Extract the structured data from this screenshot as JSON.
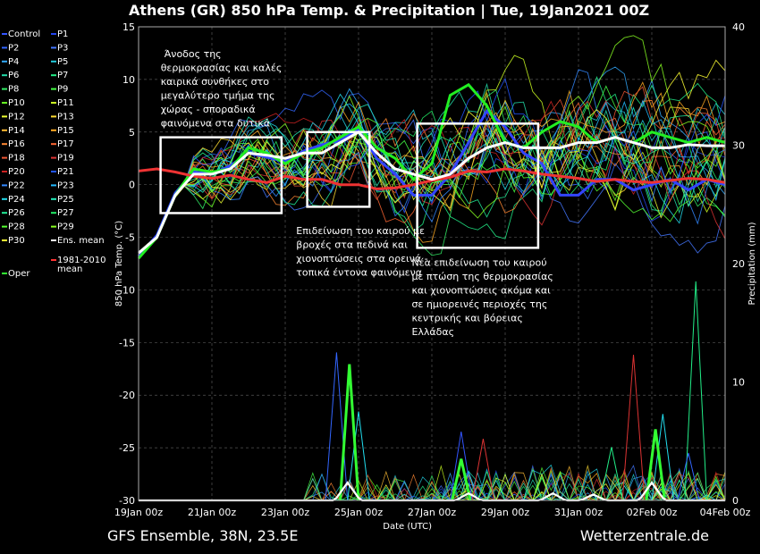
{
  "chart_data": {
    "type": "line",
    "title": "Athens  (GR)  850 hPa Temp. & Precipitation | Tue, 19Jan2021 00Z",
    "footer_left": "GFS Ensemble, 38N, 23.5E",
    "footer_right": "Wetterzentrale.de",
    "xlabel": "Date (UTC)",
    "ylabel": "850 hPa Temp. (°C)",
    "y2label": "Precipitation (mm)",
    "ylim": [
      -30,
      15
    ],
    "y2lim": [
      0,
      40
    ],
    "yticks": [
      "15",
      "10",
      "5",
      "0",
      "-5",
      "-10",
      "-15",
      "-20",
      "-25",
      "-30"
    ],
    "y2ticks": [
      "40",
      "30",
      "20",
      "10",
      "0"
    ],
    "xticks": [
      "19Jan 00z",
      "21Jan 00z",
      "23Jan 00z",
      "25Jan 00z",
      "27Jan 00z",
      "29Jan 00z",
      "31Jan 00z",
      "02Feb 00z",
      "04Feb 00z"
    ],
    "xrange_days": [
      0,
      16
    ],
    "grid": true,
    "legend": {
      "placement": "left",
      "items": [
        {
          "label": "Control",
          "color": "#3355ff"
        },
        {
          "label": "P1",
          "color": "#2244ee"
        },
        {
          "label": "P2",
          "color": "#3366ff"
        },
        {
          "label": "P3",
          "color": "#4477ff"
        },
        {
          "label": "P4",
          "color": "#33aaff"
        },
        {
          "label": "P5",
          "color": "#22ccdd"
        },
        {
          "label": "P6",
          "color": "#22ddaa"
        },
        {
          "label": "P7",
          "color": "#22ee88"
        },
        {
          "label": "P8",
          "color": "#33ee66"
        },
        {
          "label": "P9",
          "color": "#44ff44"
        },
        {
          "label": "P10",
          "color": "#66ff22"
        },
        {
          "label": "P11",
          "color": "#ccff22"
        },
        {
          "label": "P12",
          "color": "#eeff33"
        },
        {
          "label": "P13",
          "color": "#ffdd33"
        },
        {
          "label": "P14",
          "color": "#ffbb33"
        },
        {
          "label": "P15",
          "color": "#ffaa22"
        },
        {
          "label": "P16",
          "color": "#ff8833"
        },
        {
          "label": "P17",
          "color": "#ff6633"
        },
        {
          "label": "P18",
          "color": "#ee5533"
        },
        {
          "label": "P19",
          "color": "#dd3333"
        },
        {
          "label": "P20",
          "color": "#cc2222"
        },
        {
          "label": "P21",
          "color": "#2255ff"
        },
        {
          "label": "P22",
          "color": "#3388ff"
        },
        {
          "label": "P23",
          "color": "#22bbff"
        },
        {
          "label": "P24",
          "color": "#22ddee"
        },
        {
          "label": "P25",
          "color": "#22eebb"
        },
        {
          "label": "P26",
          "color": "#22ee99"
        },
        {
          "label": "P27",
          "color": "#22ee66"
        },
        {
          "label": "P28",
          "color": "#55ff33"
        },
        {
          "label": "P29",
          "color": "#88ff22"
        },
        {
          "label": "P30",
          "color": "#ffff33"
        },
        {
          "label": "Ens. mean",
          "color": "#ffffff"
        },
        {
          "label": "Oper",
          "color": "#33ff33"
        },
        {
          "label": "1981-2010 mean",
          "color": "#ff3333"
        }
      ]
    },
    "mean_days": [
      0,
      0.5,
      1,
      1.5,
      2,
      2.5,
      3,
      3.5,
      4,
      4.5,
      5,
      5.5,
      6,
      6.5,
      7,
      7.5,
      8,
      8.5,
      9,
      9.5,
      10,
      10.5,
      11,
      11.5,
      12,
      12.5,
      13,
      13.5,
      14,
      14.5,
      15,
      15.5,
      16
    ],
    "ens_mean": [
      -6.5,
      -5,
      -1,
      1,
      1,
      1.5,
      3,
      2.8,
      2.5,
      3,
      3,
      4,
      5,
      3,
      1.5,
      1,
      0.5,
      1,
      2.5,
      3.5,
      4,
      3.5,
      3.5,
      3.5,
      4,
      4,
      4.5,
      4,
      3.5,
      3.5,
      3.8,
      3.7,
      3.7
    ],
    "climo_mean": [
      1.3,
      1.5,
      1.2,
      0.8,
      0.6,
      0.9,
      0.5,
      0.2,
      0.8,
      0.5,
      0.5,
      0,
      0,
      -0.4,
      -0.3,
      0,
      0.4,
      0.7,
      1.3,
      1.2,
      1.5,
      1.3,
      1.0,
      0.8,
      0.6,
      0.3,
      0.5,
      0.3,
      0.2,
      0.4,
      0.6,
      0.5,
      0.2
    ],
    "oper_days": [
      0,
      0.5,
      1,
      1.5,
      2,
      2.5,
      3,
      3.5,
      4,
      4.5,
      5,
      5.5,
      6,
      6.5,
      7,
      7.5,
      8,
      8.5,
      9,
      9.5,
      10,
      10.5,
      11,
      11.5,
      12,
      12.5,
      13,
      13.5,
      14,
      14.5,
      15,
      15.5,
      16
    ],
    "oper": [
      -7,
      -5,
      -1,
      1.5,
      1.2,
      1.5,
      3.5,
      3,
      2,
      3,
      3.5,
      4.5,
      5.5,
      3.5,
      2.5,
      0.5,
      2,
      8.5,
      9.5,
      7.5,
      4,
      3.5,
      5,
      6,
      5.5,
      4,
      4.5,
      4,
      5,
      4.5,
      4,
      4.5,
      4
    ],
    "control": [
      -6.8,
      -4.8,
      -0.8,
      1.2,
      1,
      1.8,
      3,
      2.6,
      2.2,
      3.2,
      3.8,
      4.2,
      5.2,
      2.5,
      1,
      -1,
      -1,
      1,
      4,
      7,
      5.5,
      3,
      2,
      -1,
      -1,
      0.5,
      0.5,
      -0.5,
      0,
      0.5,
      -0.5,
      0.5,
      0
    ],
    "precip_mean_peaks": [
      {
        "day": 5.7,
        "mm": 1.5
      },
      {
        "day": 9,
        "mm": 0.6
      },
      {
        "day": 11.3,
        "mm": 0.6
      },
      {
        "day": 12.4,
        "mm": 0.5
      },
      {
        "day": 14,
        "mm": 1.5
      }
    ],
    "precip_oper_peaks": [
      {
        "day": 5.75,
        "mm": 11.5
      },
      {
        "day": 8.8,
        "mm": 3.5
      },
      {
        "day": 14.1,
        "mm": 6
      }
    ],
    "precip_member_spikes": [
      {
        "day": 5.4,
        "mm": 12.5,
        "color": "#3366ff"
      },
      {
        "day": 6.0,
        "mm": 7.5,
        "color": "#22ddee"
      },
      {
        "day": 8.8,
        "mm": 5.8,
        "color": "#3355ff"
      },
      {
        "day": 9.4,
        "mm": 5.2,
        "color": "#dd3333"
      },
      {
        "day": 13.5,
        "mm": 12.3,
        "color": "#dd3333"
      },
      {
        "day": 14.3,
        "mm": 7.3,
        "color": "#22ddee"
      },
      {
        "day": 15.2,
        "mm": 18.5,
        "color": "#22ee88"
      },
      {
        "day": 12.9,
        "mm": 4.5,
        "color": "#22ee88"
      },
      {
        "day": 15.0,
        "mm": 4.0,
        "color": "#3366ff"
      }
    ],
    "boxes": [
      {
        "d0": 0.6,
        "d1": 3.9,
        "t0": 4.5,
        "t1": -2.7
      },
      {
        "d0": 4.6,
        "d1": 6.3,
        "t0": 5,
        "t1": -2.1
      },
      {
        "d0": 7.6,
        "d1": 10.9,
        "t0": 5.8,
        "t1": -6
      }
    ],
    "annotations": [
      {
        "day": 0.7,
        "temp": 12.1,
        "anchor": "start",
        "lines": [
          "Άνοδος της",
          "θερμοκρασίας και καλές",
          "καιρικά συνθήκες στο",
          "μεγαλύτερο τμήμα της",
          "χώρας - σποραδικά",
          "φαινόμενα στα δυτικά"
        ]
      },
      {
        "day": 4.3,
        "temp": -4.7,
        "anchor": "start",
        "lines": [
          "Επιδείνωση του καιρού με",
          "βροχές στα πεδινά και",
          "χιονοπτώσεις στα ορεινά -",
          "τοπικά έντονα φαινόμενα"
        ]
      },
      {
        "day": 7.45,
        "temp": -7.7,
        "anchor": "start",
        "lines": [
          "Νέα επιδείνωση του καιρού",
          "με πτώση της θερμοκρασίας",
          "και χιονοπτώσεις ακόμα και",
          "σε ημιορεινές περιοχές της",
          "κεντρικής και βόρειας",
          "Ελλάδας"
        ]
      }
    ]
  }
}
